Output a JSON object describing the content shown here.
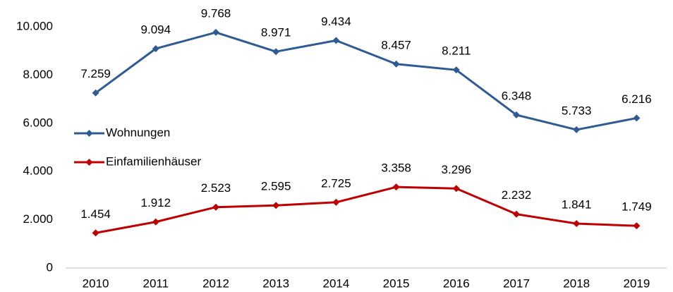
{
  "chart_data": {
    "type": "line",
    "categories": [
      "2010",
      "2011",
      "2012",
      "2013",
      "2014",
      "2015",
      "2016",
      "2017",
      "2018",
      "2019"
    ],
    "series": [
      {
        "name": "Wohnungen",
        "color": "#2f5b95",
        "values": [
          7259,
          9094,
          9768,
          8971,
          9434,
          8457,
          8211,
          6348,
          5733,
          6216
        ],
        "value_labels": [
          "7.259",
          "9.094",
          "9.768",
          "8.971",
          "9.434",
          "8.457",
          "8.211",
          "6.348",
          "5.733",
          "6.216"
        ]
      },
      {
        "name": "Einfamilienhäuser",
        "color": "#c00000",
        "values": [
          1454,
          1912,
          2523,
          2595,
          2725,
          3358,
          3296,
          2232,
          1841,
          1749
        ],
        "value_labels": [
          "1.454",
          "1.912",
          "2.523",
          "2.595",
          "2.725",
          "3.358",
          "3.296",
          "2.232",
          "1.841",
          "1.749"
        ]
      }
    ],
    "ylim": [
      0,
      10000
    ],
    "yticks": [
      0,
      {
        "value": 2000,
        "label": "2.000"
      },
      {
        "value": 4000,
        "label": "4.000"
      },
      {
        "value": 6000,
        "label": "6.000"
      },
      {
        "value": 8000,
        "label": "8.000"
      },
      {
        "value": 10000,
        "label": "10.000"
      }
    ],
    "grid": false,
    "legend": "left"
  }
}
